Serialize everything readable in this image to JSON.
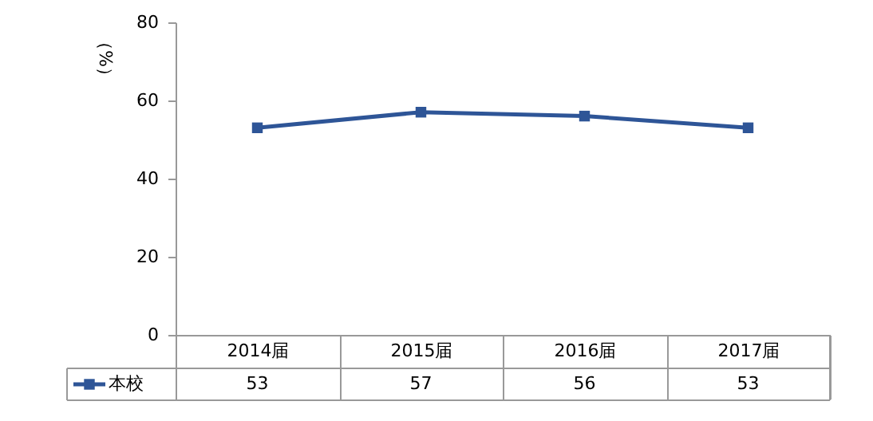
{
  "chart_data": {
    "type": "line",
    "ylabel": "（%）",
    "categories": [
      "2014届",
      "2015届",
      "2016届",
      "2017届"
    ],
    "series": [
      {
        "name": "本校",
        "color": "#2e5597",
        "values": [
          53,
          57,
          56,
          53
        ]
      }
    ],
    "ylim": [
      0,
      80
    ],
    "yticks": [
      0,
      20,
      40,
      60,
      80
    ],
    "grid": false,
    "legend": "bottom left",
    "marker": "square",
    "line_style": "solid",
    "data_labels": true
  }
}
